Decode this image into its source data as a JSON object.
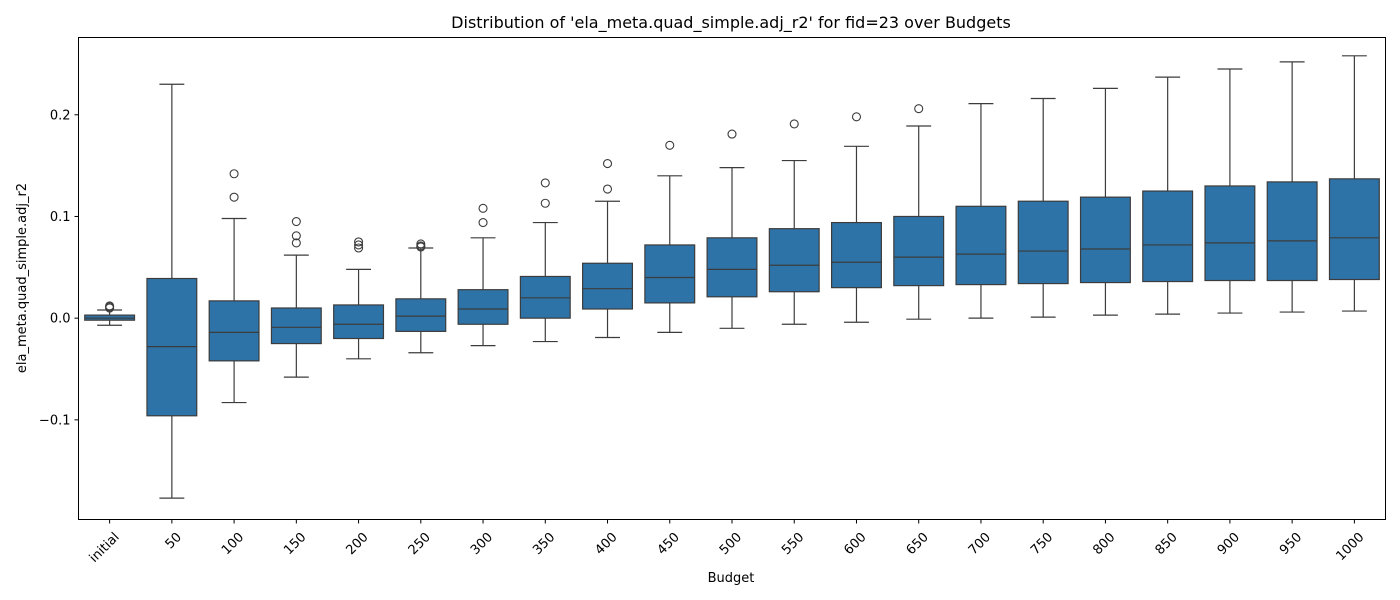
{
  "chart_data": {
    "type": "box",
    "title": "Distribution of 'ela_meta.quad_simple.adj_r2' for fid=23 over Budgets",
    "xlabel": "Budget",
    "ylabel": "ela_meta.quad_simple.adj_r2",
    "ylim": [
      -0.198,
      0.276
    ],
    "yticks": [
      -0.1,
      0.0,
      0.1,
      0.2
    ],
    "ytick_labels": [
      "−0.1",
      "0.0",
      "0.1",
      "0.2"
    ],
    "x_tick_rotation": 45,
    "box_color": "#2e73a8",
    "line_color": "#3c3c3c",
    "categories": [
      "initial",
      "50",
      "100",
      "150",
      "200",
      "250",
      "300",
      "350",
      "400",
      "450",
      "500",
      "550",
      "600",
      "650",
      "700",
      "750",
      "800",
      "850",
      "900",
      "950",
      "1000"
    ],
    "boxes": [
      {
        "category": "initial",
        "whislo": -0.007,
        "q1": -0.002,
        "med": 0.0,
        "q3": 0.003,
        "whishi": 0.008,
        "fliers": [
          0.01,
          0.011,
          0.012
        ]
      },
      {
        "category": "50",
        "whislo": -0.177,
        "q1": -0.096,
        "med": -0.028,
        "q3": 0.039,
        "whishi": 0.23,
        "fliers": []
      },
      {
        "category": "100",
        "whislo": -0.083,
        "q1": -0.042,
        "med": -0.014,
        "q3": 0.017,
        "whishi": 0.098,
        "fliers": [
          0.119,
          0.142
        ]
      },
      {
        "category": "150",
        "whislo": -0.058,
        "q1": -0.025,
        "med": -0.009,
        "q3": 0.01,
        "whishi": 0.062,
        "fliers": [
          0.074,
          0.081,
          0.095
        ]
      },
      {
        "category": "200",
        "whislo": -0.04,
        "q1": -0.02,
        "med": -0.006,
        "q3": 0.013,
        "whishi": 0.048,
        "fliers": [
          0.069,
          0.072,
          0.075
        ]
      },
      {
        "category": "250",
        "whislo": -0.034,
        "q1": -0.013,
        "med": 0.002,
        "q3": 0.019,
        "whishi": 0.069,
        "fliers": [
          0.07,
          0.071,
          0.073
        ]
      },
      {
        "category": "300",
        "whislo": -0.027,
        "q1": -0.006,
        "med": 0.009,
        "q3": 0.028,
        "whishi": 0.079,
        "fliers": [
          0.094,
          0.108
        ]
      },
      {
        "category": "350",
        "whislo": -0.023,
        "q1": 0.0,
        "med": 0.02,
        "q3": 0.041,
        "whishi": 0.094,
        "fliers": [
          0.113,
          0.133
        ]
      },
      {
        "category": "400",
        "whislo": -0.019,
        "q1": 0.009,
        "med": 0.029,
        "q3": 0.054,
        "whishi": 0.115,
        "fliers": [
          0.127,
          0.152
        ]
      },
      {
        "category": "450",
        "whislo": -0.014,
        "q1": 0.015,
        "med": 0.04,
        "q3": 0.072,
        "whishi": 0.14,
        "fliers": [
          0.17
        ]
      },
      {
        "category": "500",
        "whislo": -0.01,
        "q1": 0.021,
        "med": 0.048,
        "q3": 0.079,
        "whishi": 0.148,
        "fliers": [
          0.181
        ]
      },
      {
        "category": "550",
        "whislo": -0.006,
        "q1": 0.026,
        "med": 0.052,
        "q3": 0.088,
        "whishi": 0.155,
        "fliers": [
          0.191
        ]
      },
      {
        "category": "600",
        "whislo": -0.004,
        "q1": 0.03,
        "med": 0.055,
        "q3": 0.094,
        "whishi": 0.169,
        "fliers": [
          0.198
        ]
      },
      {
        "category": "650",
        "whislo": -0.001,
        "q1": 0.032,
        "med": 0.06,
        "q3": 0.1,
        "whishi": 0.189,
        "fliers": [
          0.206
        ]
      },
      {
        "category": "700",
        "whislo": 0.0,
        "q1": 0.033,
        "med": 0.063,
        "q3": 0.11,
        "whishi": 0.211,
        "fliers": []
      },
      {
        "category": "750",
        "whislo": 0.001,
        "q1": 0.034,
        "med": 0.066,
        "q3": 0.115,
        "whishi": 0.216,
        "fliers": []
      },
      {
        "category": "800",
        "whislo": 0.003,
        "q1": 0.035,
        "med": 0.068,
        "q3": 0.119,
        "whishi": 0.226,
        "fliers": []
      },
      {
        "category": "850",
        "whislo": 0.004,
        "q1": 0.036,
        "med": 0.072,
        "q3": 0.125,
        "whishi": 0.237,
        "fliers": []
      },
      {
        "category": "900",
        "whislo": 0.005,
        "q1": 0.037,
        "med": 0.074,
        "q3": 0.13,
        "whishi": 0.245,
        "fliers": []
      },
      {
        "category": "950",
        "whislo": 0.006,
        "q1": 0.037,
        "med": 0.076,
        "q3": 0.134,
        "whishi": 0.252,
        "fliers": []
      },
      {
        "category": "1000",
        "whislo": 0.007,
        "q1": 0.038,
        "med": 0.079,
        "q3": 0.137,
        "whishi": 0.258,
        "fliers": []
      }
    ]
  }
}
